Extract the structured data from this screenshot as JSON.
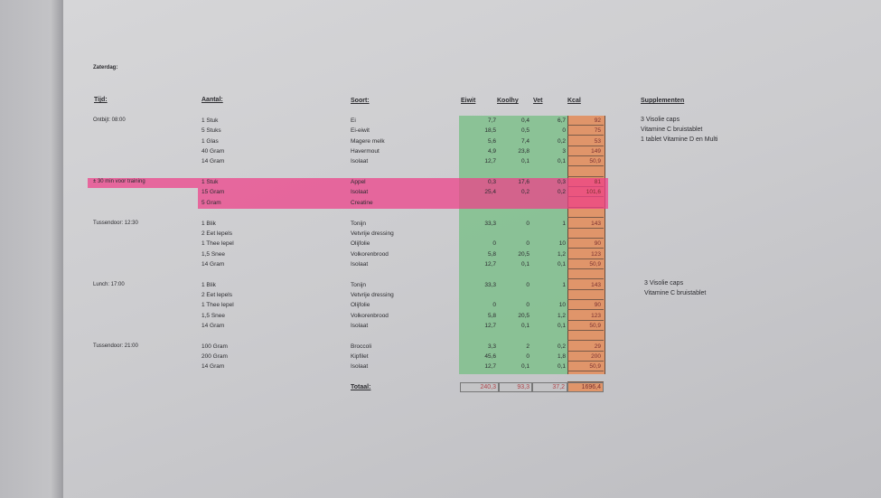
{
  "day": "Zaterdag:",
  "headers": {
    "time": "Tijd:",
    "amount": "Aantal:",
    "type": "Soort:",
    "protein": "Eiwit",
    "carbs": "Koolhy",
    "fat": "Vet",
    "kcal": "Kcal",
    "supplements": "Supplementen"
  },
  "highlight_color": "#ee3f88",
  "colors": {
    "macros": "#7fbf8c",
    "kcal": "#e0956a"
  },
  "meals": [
    {
      "time": "Ontbijt: 08:00",
      "highlighted": false,
      "rows": [
        {
          "amount": "1 Stuk",
          "food": "Ei",
          "protein": "7,7",
          "carbs": "0,4",
          "fat": "6,7",
          "kcal": "92"
        },
        {
          "amount": "5 Stuks",
          "food": "Ei-eiwit",
          "protein": "18,5",
          "carbs": "0,5",
          "fat": "0",
          "kcal": "75"
        },
        {
          "amount": "1 Glas",
          "food": "Magere melk",
          "protein": "5,6",
          "carbs": "7,4",
          "fat": "0,2",
          "kcal": "53"
        },
        {
          "amount": "40 Gram",
          "food": "Havermout",
          "protein": "4,9",
          "carbs": "23,8",
          "fat": "3",
          "kcal": "149"
        },
        {
          "amount": "14 Gram",
          "food": "Isolaat",
          "protein": "12,7",
          "carbs": "0,1",
          "fat": "0,1",
          "kcal": "50,9"
        }
      ]
    },
    {
      "time": "± 30 min voor training",
      "highlighted": true,
      "rows": [
        {
          "amount": "1 Stuk",
          "food": "Appel",
          "protein": "0,3",
          "carbs": "17,6",
          "fat": "0,3",
          "kcal": "81"
        },
        {
          "amount": "15 Gram",
          "food": "Isolaat",
          "protein": "25,4",
          "carbs": "0,2",
          "fat": "0,2",
          "kcal": "101,6"
        },
        {
          "amount": "5 Gram",
          "food": "Creatine",
          "protein": "",
          "carbs": "",
          "fat": "",
          "kcal": ""
        }
      ]
    },
    {
      "time": "Tussendoor: 12:30",
      "highlighted": false,
      "rows": [
        {
          "amount": "1 Blik",
          "food": "Tonijn",
          "protein": "33,3",
          "carbs": "0",
          "fat": "1",
          "kcal": "143"
        },
        {
          "amount": "2 Eet lepels",
          "food": "Vetvrije dressing",
          "protein": "",
          "carbs": "",
          "fat": "",
          "kcal": ""
        },
        {
          "amount": "1 Thee lepel",
          "food": "Olijfolie",
          "protein": "0",
          "carbs": "0",
          "fat": "10",
          "kcal": "90"
        },
        {
          "amount": "1,5 Snee",
          "food": "Volkorenbrood",
          "protein": "5,8",
          "carbs": "20,5",
          "fat": "1,2",
          "kcal": "123"
        },
        {
          "amount": "14 Gram",
          "food": "Isolaat",
          "protein": "12,7",
          "carbs": "0,1",
          "fat": "0,1",
          "kcal": "50,9"
        }
      ]
    },
    {
      "time": "Lunch: 17:00",
      "highlighted": false,
      "rows": [
        {
          "amount": "1 Blik",
          "food": "Tonijn",
          "protein": "33,3",
          "carbs": "0",
          "fat": "1",
          "kcal": "143"
        },
        {
          "amount": "2 Eet lepels",
          "food": "Vetvrije dressing",
          "protein": "",
          "carbs": "",
          "fat": "",
          "kcal": ""
        },
        {
          "amount": "1 Thee lepel",
          "food": "Olijfolie",
          "protein": "0",
          "carbs": "0",
          "fat": "10",
          "kcal": "90"
        },
        {
          "amount": "1,5 Snee",
          "food": "Volkorenbrood",
          "protein": "5,8",
          "carbs": "20,5",
          "fat": "1,2",
          "kcal": "123"
        },
        {
          "amount": "14 Gram",
          "food": "Isolaat",
          "protein": "12,7",
          "carbs": "0,1",
          "fat": "0,1",
          "kcal": "50,9"
        }
      ]
    },
    {
      "time": "Tussendoor: 21:00",
      "highlighted": false,
      "rows": [
        {
          "amount": "100 Gram",
          "food": "Broccoli",
          "protein": "3,3",
          "carbs": "2",
          "fat": "0,2",
          "kcal": "29"
        },
        {
          "amount": "200 Gram",
          "food": "Kipfilet",
          "protein": "45,6",
          "carbs": "0",
          "fat": "1,8",
          "kcal": "200"
        },
        {
          "amount": "14 Gram",
          "food": "Isolaat",
          "protein": "12,7",
          "carbs": "0,1",
          "fat": "0,1",
          "kcal": "50,9"
        }
      ]
    }
  ],
  "total": {
    "label": "Totaal:",
    "protein": "240,3",
    "carbs": "93,3",
    "fat": "37,2",
    "kcal": "1696,4"
  },
  "supplements_morning": [
    "3 Visolie caps",
    "Vitamine C bruistablet",
    "1 tablet Vitamine D en Multi"
  ],
  "supplements_lunch": [
    "3 Visolie caps",
    "Vitamine C bruistablet"
  ]
}
